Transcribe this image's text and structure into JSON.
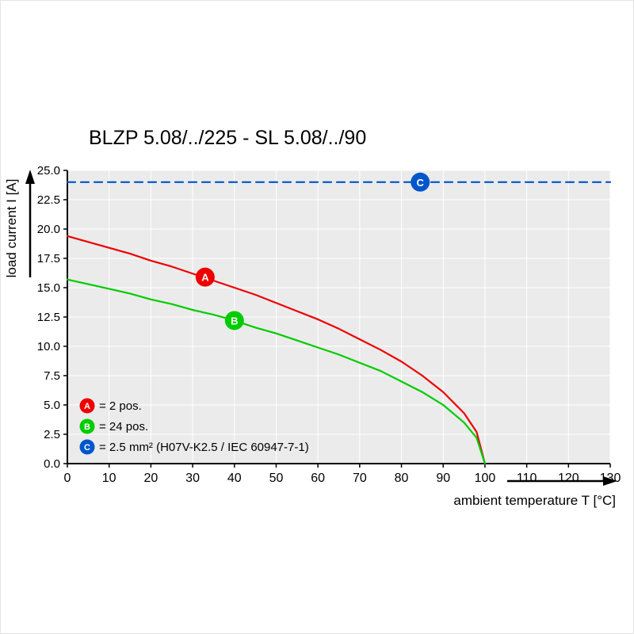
{
  "chart_data": {
    "type": "line",
    "title": "BLZP 5.08/../225 - SL 5.08/../90",
    "xlabel": "ambient temperature T [°C]",
    "ylabel": "load current I [A]",
    "xlim": [
      0,
      130
    ],
    "ylim": [
      0,
      25
    ],
    "xticks": [
      0,
      10,
      20,
      30,
      40,
      50,
      60,
      70,
      80,
      90,
      100,
      110,
      120,
      130
    ],
    "xtick_labels": [
      "0",
      "10",
      "20",
      "30",
      "40",
      "50",
      "60",
      "70",
      "80",
      "90",
      "100",
      "110",
      "120",
      "130"
    ],
    "yticks": [
      0,
      2.5,
      5,
      7.5,
      10,
      12.5,
      15,
      17.5,
      20,
      22.5,
      25
    ],
    "ytick_labels": [
      "0.0",
      "2.5",
      "5.0",
      "7.5",
      "10.0",
      "12.5",
      "15.0",
      "17.5",
      "20.0",
      "22.5",
      "25.0"
    ],
    "grid": true,
    "plot_bg": "#ebebeb",
    "grid_color": "#ffffff",
    "legend_position": "bottom-left-inside",
    "series": [
      {
        "name": "A",
        "label": "= 2 pos.",
        "color": "#ee0000",
        "marker": {
          "x": 33,
          "y": 15.9
        },
        "points": [
          [
            0,
            19.4
          ],
          [
            5,
            18.9
          ],
          [
            10,
            18.4
          ],
          [
            15,
            17.9
          ],
          [
            20,
            17.3
          ],
          [
            25,
            16.8
          ],
          [
            30,
            16.2
          ],
          [
            35,
            15.6
          ],
          [
            40,
            15.0
          ],
          [
            45,
            14.4
          ],
          [
            50,
            13.7
          ],
          [
            55,
            13.0
          ],
          [
            60,
            12.3
          ],
          [
            65,
            11.5
          ],
          [
            70,
            10.6
          ],
          [
            75,
            9.7
          ],
          [
            80,
            8.7
          ],
          [
            85,
            7.5
          ],
          [
            90,
            6.1
          ],
          [
            95,
            4.3
          ],
          [
            98,
            2.7
          ],
          [
            100,
            0
          ]
        ]
      },
      {
        "name": "B",
        "label": "= 24 pos.",
        "color": "#00cc00",
        "marker": {
          "x": 40,
          "y": 12.2
        },
        "points": [
          [
            0,
            15.7
          ],
          [
            5,
            15.3
          ],
          [
            10,
            14.9
          ],
          [
            15,
            14.5
          ],
          [
            20,
            14.0
          ],
          [
            25,
            13.6
          ],
          [
            30,
            13.1
          ],
          [
            35,
            12.7
          ],
          [
            40,
            12.2
          ],
          [
            45,
            11.6
          ],
          [
            50,
            11.1
          ],
          [
            55,
            10.5
          ],
          [
            60,
            9.9
          ],
          [
            65,
            9.3
          ],
          [
            70,
            8.6
          ],
          [
            75,
            7.9
          ],
          [
            80,
            7.0
          ],
          [
            85,
            6.1
          ],
          [
            90,
            5.0
          ],
          [
            95,
            3.5
          ],
          [
            98,
            2.2
          ],
          [
            100,
            0
          ]
        ]
      },
      {
        "name": "C",
        "label": "= 2.5 mm² (H07V-K2.5 / IEC 60947-7-1)",
        "color": "#0055cc",
        "dash": "10 7",
        "marker": {
          "x": 84.5,
          "y": 24
        },
        "points": [
          [
            0,
            24
          ],
          [
            130,
            24
          ]
        ]
      }
    ]
  }
}
